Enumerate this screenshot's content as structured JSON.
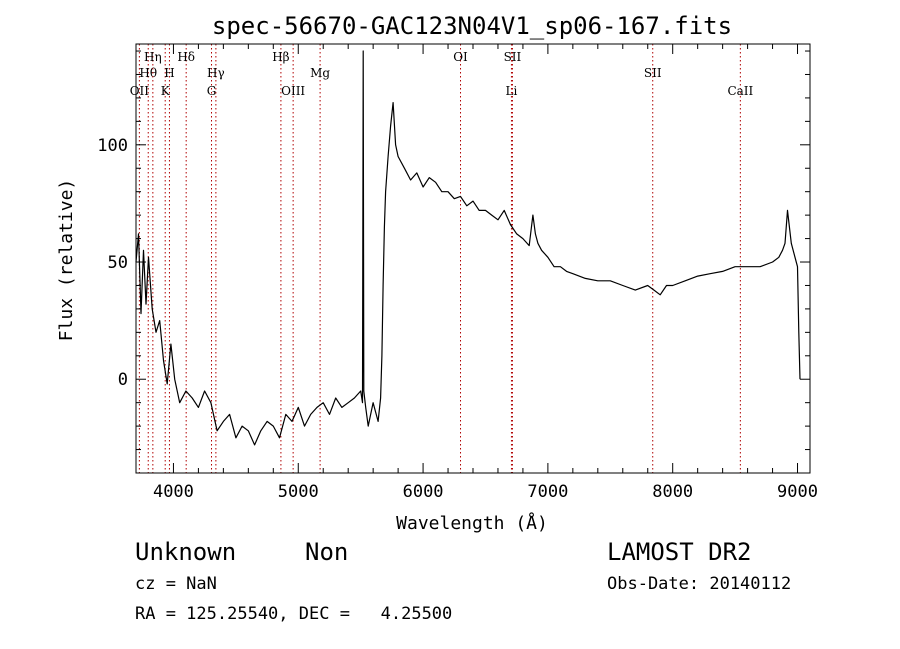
{
  "chart_data": {
    "type": "line",
    "title": "spec-56670-GAC123N04V1_sp06-167.fits",
    "xlabel": "Wavelength (Å)",
    "ylabel": "Flux (relative)",
    "xlim": [
      3700,
      9100
    ],
    "ylim": [
      -40,
      143
    ],
    "x_ticks": [
      {
        "value": 4000,
        "label": "4000"
      },
      {
        "value": 5000,
        "label": "5000"
      },
      {
        "value": 6000,
        "label": "6000"
      },
      {
        "value": 7000,
        "label": "7000"
      },
      {
        "value": 8000,
        "label": "8000"
      },
      {
        "value": 9000,
        "label": "9000"
      }
    ],
    "y_ticks": [
      {
        "value": 0,
        "label": "0"
      },
      {
        "value": 50,
        "label": "50"
      },
      {
        "value": 100,
        "label": "100"
      }
    ],
    "grid": false,
    "line_color": "#000000",
    "marker_color": "#b00000",
    "series": [
      {
        "x": [
          3700,
          3720,
          3740,
          3760,
          3780,
          3800,
          3830,
          3860,
          3890,
          3920,
          3950,
          3980,
          4010,
          4050,
          4100,
          4150,
          4200,
          4250,
          4300,
          4350,
          4400,
          4450,
          4500,
          4550,
          4600,
          4650,
          4700,
          4750,
          4800,
          4850,
          4900,
          4950,
          5000,
          5050,
          5100,
          5150,
          5200,
          5250,
          5300,
          5350,
          5400,
          5450,
          5500,
          5515,
          5520,
          5525,
          5540,
          5560,
          5600,
          5640,
          5660,
          5670,
          5680,
          5690,
          5700,
          5720,
          5740,
          5760,
          5780,
          5800,
          5850,
          5900,
          5950,
          6000,
          6050,
          6100,
          6150,
          6200,
          6250,
          6300,
          6350,
          6400,
          6450,
          6500,
          6550,
          6600,
          6650,
          6700,
          6750,
          6800,
          6850,
          6880,
          6900,
          6920,
          6950,
          7000,
          7050,
          7100,
          7150,
          7200,
          7300,
          7400,
          7500,
          7600,
          7700,
          7800,
          7850,
          7900,
          7950,
          8000,
          8100,
          8200,
          8300,
          8400,
          8500,
          8600,
          8700,
          8800,
          8850,
          8880,
          8900,
          8920,
          8950,
          8980,
          9000,
          9010,
          9020
        ],
        "y": [
          50,
          62,
          28,
          55,
          32,
          52,
          30,
          20,
          25,
          8,
          -2,
          15,
          0,
          -10,
          -5,
          -8,
          -12,
          -5,
          -10,
          -22,
          -18,
          -15,
          -25,
          -20,
          -22,
          -28,
          -22,
          -18,
          -20,
          -25,
          -15,
          -18,
          -12,
          -20,
          -15,
          -12,
          -10,
          -15,
          -8,
          -12,
          -10,
          -8,
          -5,
          -10,
          140,
          -5,
          -12,
          -20,
          -10,
          -18,
          -8,
          10,
          40,
          65,
          80,
          95,
          108,
          118,
          100,
          95,
          90,
          85,
          88,
          82,
          86,
          84,
          80,
          80,
          77,
          78,
          74,
          76,
          72,
          72,
          70,
          68,
          72,
          66,
          62,
          60,
          57,
          70,
          62,
          58,
          55,
          52,
          48,
          48,
          46,
          45,
          43,
          42,
          42,
          40,
          38,
          40,
          38,
          36,
          40,
          40,
          42,
          44,
          45,
          46,
          48,
          48,
          48,
          50,
          52,
          55,
          58,
          72,
          58,
          52,
          48,
          20,
          0
        ]
      }
    ],
    "lines": [
      {
        "label": "OII",
        "x": 3727,
        "row": 3
      },
      {
        "label": "Hθ",
        "x": 3798,
        "row": 2
      },
      {
        "label": "Hη",
        "x": 3835,
        "row": 1
      },
      {
        "label": "K",
        "x": 3934,
        "row": 3
      },
      {
        "label": "H",
        "x": 3968,
        "row": 2
      },
      {
        "label": "Hδ",
        "x": 4102,
        "row": 1
      },
      {
        "label": "G",
        "x": 4305,
        "row": 3
      },
      {
        "label": "Hγ",
        "x": 4340,
        "row": 2
      },
      {
        "label": "Hβ",
        "x": 4861,
        "row": 1
      },
      {
        "label": "OIII",
        "x": 4959,
        "row": 3
      },
      {
        "label": "Mg",
        "x": 5175,
        "row": 2
      },
      {
        "label": "OI",
        "x": 6300,
        "row": 1
      },
      {
        "label": "SII",
        "x": 6716,
        "row": 1
      },
      {
        "label": "Li",
        "x": 6708,
        "row": 3
      },
      {
        "label": "SII",
        "x": 7840,
        "row": 2
      },
      {
        "label": "CaII",
        "x": 8542,
        "row": 3
      }
    ]
  },
  "info": {
    "class": "Unknown",
    "subclass": "Non",
    "cz": "cz = NaN",
    "radec": "RA = 125.25540, DEC =   4.25500",
    "survey": "LAMOST DR2",
    "obsdate": "Obs-Date: 20140112"
  }
}
